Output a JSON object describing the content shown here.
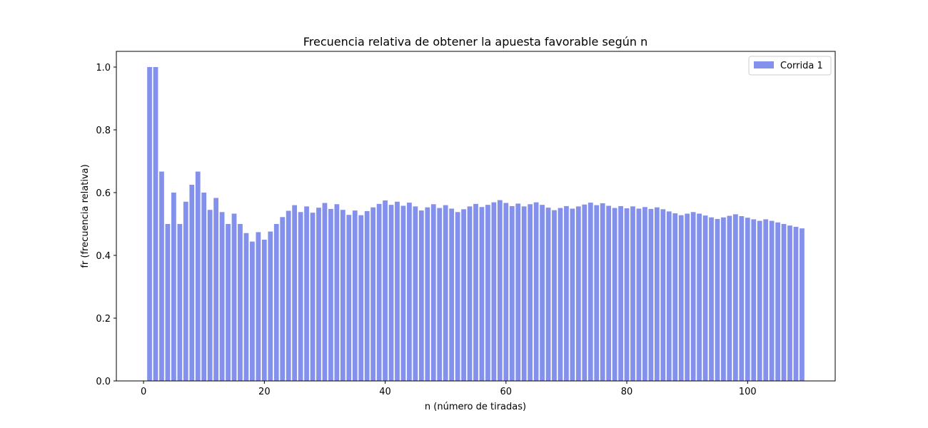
{
  "chart_data": {
    "type": "bar",
    "title": "Frecuencia relativa de obtener la apuesta favorable según n",
    "xlabel": "n (número de tiradas)",
    "ylabel": "fr (frecuencia relativa)",
    "xlim": [
      -4.5,
      114.5
    ],
    "ylim": [
      0,
      1.05
    ],
    "xticks": [
      0,
      20,
      40,
      60,
      80,
      100
    ],
    "yticks": [
      0.0,
      0.2,
      0.4,
      0.6,
      0.8,
      1.0
    ],
    "ytick_labels": [
      "0.0",
      "0.2",
      "0.4",
      "0.6",
      "0.8",
      "1.0"
    ],
    "bar_color": "#8491EC",
    "legend_position": "upper right",
    "series": [
      {
        "name": "Corrida 1",
        "x_start": 1,
        "values": [
          1.0,
          1.0,
          0.667,
          0.5,
          0.6,
          0.5,
          0.571,
          0.625,
          0.667,
          0.6,
          0.545,
          0.583,
          0.538,
          0.5,
          0.533,
          0.5,
          0.471,
          0.444,
          0.474,
          0.45,
          0.476,
          0.5,
          0.522,
          0.542,
          0.56,
          0.538,
          0.556,
          0.536,
          0.552,
          0.567,
          0.548,
          0.563,
          0.545,
          0.529,
          0.543,
          0.528,
          0.541,
          0.553,
          0.564,
          0.575,
          0.561,
          0.571,
          0.558,
          0.568,
          0.556,
          0.543,
          0.553,
          0.563,
          0.551,
          0.56,
          0.549,
          0.538,
          0.547,
          0.556,
          0.564,
          0.554,
          0.561,
          0.569,
          0.576,
          0.567,
          0.557,
          0.565,
          0.556,
          0.563,
          0.569,
          0.561,
          0.552,
          0.544,
          0.551,
          0.557,
          0.549,
          0.556,
          0.562,
          0.568,
          0.56,
          0.566,
          0.558,
          0.551,
          0.557,
          0.55,
          0.556,
          0.549,
          0.554,
          0.548,
          0.553,
          0.547,
          0.54,
          0.534,
          0.528,
          0.533,
          0.538,
          0.533,
          0.527,
          0.521,
          0.516,
          0.521,
          0.526,
          0.531,
          0.525,
          0.52,
          0.515,
          0.51,
          0.515,
          0.51,
          0.505,
          0.5,
          0.495,
          0.491,
          0.486
        ]
      }
    ]
  }
}
